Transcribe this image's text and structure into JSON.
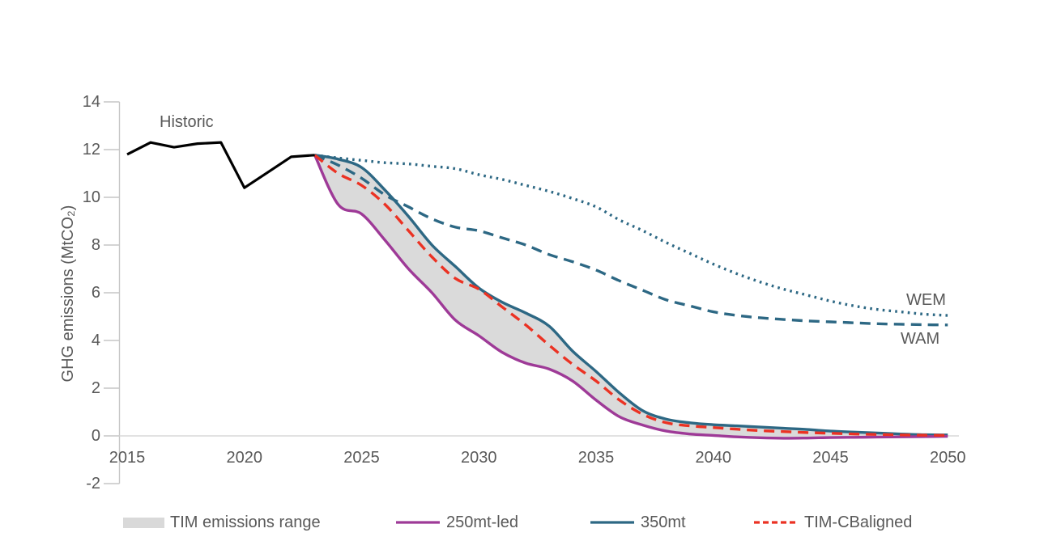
{
  "figure": {
    "ylabel": "GHG emissions (MtCO₂)",
    "annotations": {
      "historic": "Historic",
      "wem": "WEM",
      "wam": "WAM"
    }
  },
  "legend": {
    "items": [
      {
        "label": "TIM emissions range",
        "swatch": "grey-band",
        "color": "#D9D9D9"
      },
      {
        "label": "250mt-led",
        "swatch": "solid-line",
        "color": "#9E3A97"
      },
      {
        "label": "350mt",
        "swatch": "solid-line",
        "color": "#2D6884"
      },
      {
        "label": "TIM-CBaligned",
        "swatch": "dashed-line",
        "color": "#EB3223"
      }
    ]
  },
  "chart_data": {
    "type": "line",
    "title": "",
    "xlabel": "",
    "ylabel": "GHG emissions (MtCO₂)",
    "xlim": [
      2015,
      2050
    ],
    "ylim": [
      -2,
      14
    ],
    "x_ticks": [
      2015,
      2020,
      2025,
      2030,
      2035,
      2040,
      2045,
      2050
    ],
    "y_ticks": [
      -2,
      0,
      2,
      4,
      6,
      8,
      10,
      12,
      14
    ],
    "grid": "zero-line-only",
    "legend_position": "bottom",
    "axis_color": "#C6C6C6",
    "gridline_color": "#D9D9D9",
    "text_color": "#595959",
    "band": {
      "name": "TIM emissions range",
      "upper_series": "350mt",
      "lower_series": "250mt-led",
      "color": "#DADADA"
    },
    "series": [
      {
        "name": "WEM",
        "color": "#2D6884",
        "dash": "dotted",
        "smooth": true,
        "x": [
          2023,
          2024,
          2025,
          2026,
          2027,
          2028,
          2029,
          2030,
          2031,
          2032,
          2033,
          2034,
          2035,
          2036,
          2037,
          2038,
          2039,
          2040,
          2041,
          2042,
          2043,
          2044,
          2045,
          2046,
          2047,
          2048,
          2049,
          2050
        ],
        "values": [
          11.77,
          11.65,
          11.55,
          11.45,
          11.4,
          11.3,
          11.2,
          10.95,
          10.75,
          10.5,
          10.25,
          9.95,
          9.6,
          9.05,
          8.6,
          8.1,
          7.65,
          7.2,
          6.8,
          6.45,
          6.15,
          5.9,
          5.65,
          5.45,
          5.3,
          5.2,
          5.1,
          5.05
        ]
      },
      {
        "name": "WAM",
        "color": "#2D6884",
        "dash": "dashed",
        "smooth": true,
        "x": [
          2023,
          2024,
          2025,
          2026,
          2027,
          2028,
          2029,
          2030,
          2031,
          2032,
          2033,
          2034,
          2035,
          2036,
          2037,
          2038,
          2039,
          2040,
          2041,
          2042,
          2043,
          2044,
          2045,
          2046,
          2047,
          2048,
          2049,
          2050
        ],
        "values": [
          11.77,
          11.35,
          10.8,
          10.1,
          9.6,
          9.1,
          8.75,
          8.6,
          8.3,
          8.0,
          7.6,
          7.3,
          6.95,
          6.5,
          6.1,
          5.7,
          5.45,
          5.2,
          5.05,
          4.95,
          4.88,
          4.82,
          4.78,
          4.74,
          4.7,
          4.68,
          4.66,
          4.65
        ]
      },
      {
        "name": "350mt",
        "color": "#2D6884",
        "dash": "solid",
        "smooth": true,
        "x": [
          2023,
          2024,
          2025,
          2026,
          2027,
          2028,
          2029,
          2030,
          2031,
          2032,
          2033,
          2034,
          2035,
          2036,
          2037,
          2038,
          2039,
          2040,
          2041,
          2042,
          2043,
          2044,
          2045,
          2046,
          2047,
          2048,
          2049,
          2050
        ],
        "values": [
          11.77,
          11.6,
          11.25,
          10.3,
          9.2,
          8.0,
          7.1,
          6.2,
          5.6,
          5.15,
          4.6,
          3.55,
          2.7,
          1.8,
          1.05,
          0.7,
          0.55,
          0.47,
          0.42,
          0.37,
          0.32,
          0.27,
          0.2,
          0.16,
          0.12,
          0.08,
          0.05,
          0.04
        ]
      },
      {
        "name": "250mt-led",
        "color": "#9E3A97",
        "dash": "solid",
        "smooth": true,
        "x": [
          2023,
          2024,
          2025,
          2026,
          2027,
          2028,
          2029,
          2030,
          2031,
          2032,
          2033,
          2034,
          2035,
          2036,
          2037,
          2038,
          2039,
          2040,
          2041,
          2042,
          2043,
          2044,
          2045,
          2046,
          2047,
          2048,
          2049,
          2050
        ],
        "values": [
          11.77,
          9.7,
          9.3,
          8.2,
          7.0,
          6.0,
          4.85,
          4.2,
          3.5,
          3.05,
          2.8,
          2.3,
          1.5,
          0.8,
          0.45,
          0.2,
          0.08,
          0.02,
          -0.04,
          -0.08,
          -0.1,
          -0.09,
          -0.07,
          -0.06,
          -0.05,
          -0.04,
          -0.03,
          -0.02
        ]
      },
      {
        "name": "TIM-CBaligned",
        "color": "#EB3223",
        "dash": "dashed",
        "smooth": true,
        "x": [
          2023,
          2024,
          2025,
          2026,
          2027,
          2028,
          2029,
          2030,
          2031,
          2032,
          2033,
          2034,
          2035,
          2036,
          2037,
          2038,
          2039,
          2040,
          2041,
          2042,
          2043,
          2044,
          2045,
          2046,
          2047,
          2048,
          2049,
          2050
        ],
        "values": [
          11.77,
          11.0,
          10.5,
          9.7,
          8.6,
          7.5,
          6.6,
          6.15,
          5.4,
          4.65,
          3.8,
          3.0,
          2.3,
          1.5,
          0.9,
          0.55,
          0.42,
          0.35,
          0.28,
          0.22,
          0.18,
          0.14,
          0.11,
          0.08,
          0.06,
          0.04,
          0.03,
          0.02
        ]
      },
      {
        "name": "Historic",
        "color": "#000000",
        "dash": "solid",
        "smooth": false,
        "x": [
          2015,
          2016,
          2017,
          2018,
          2019,
          2020,
          2021,
          2022,
          2023
        ],
        "values": [
          11.8,
          12.3,
          12.1,
          12.25,
          12.3,
          10.4,
          11.05,
          11.7,
          11.77
        ]
      }
    ]
  }
}
